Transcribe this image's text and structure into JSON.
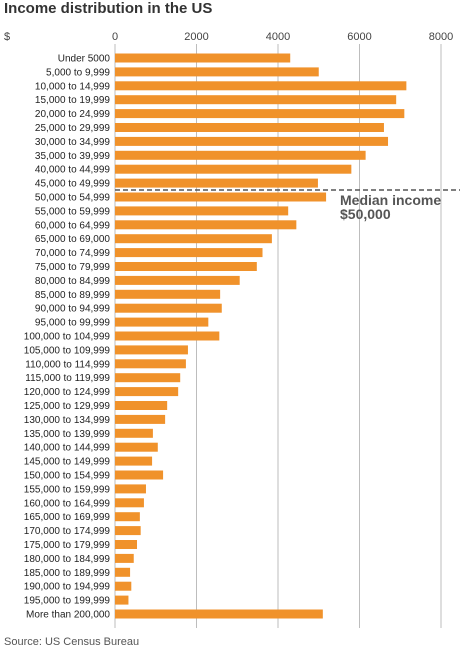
{
  "chart_data": {
    "type": "bar",
    "orientation": "horizontal",
    "title": "Income distribution in the US",
    "unit_label": "$",
    "xlim": [
      0,
      8000
    ],
    "xticks": [
      "0",
      "2000",
      "4000",
      "6000",
      "8000"
    ],
    "grid": true,
    "categories": [
      "Under 5000",
      "5,000 to 9,999",
      "10,000 to 14,999",
      "15,000 to 19,999",
      "20,000 to 24,999",
      "25,000 to 29,999",
      "30,000 to 34,999",
      "35,000 to 39,999",
      "40,000 to 44,999",
      "45,000 to 49,999",
      "50,000 to 54,999",
      "55,000 to 59,999",
      "60,000 to 64,999",
      "65,000 to 69,000",
      "70,000 to 74,999",
      "75,000 to 79,999",
      "80,000 to 84,999",
      "85,000 to 89,999",
      "90,000 to 94,999",
      "95,000 to 99,999",
      "100,000 to 104,999",
      "105,000 to 109,999",
      "110,000 to 114,999",
      "115,000 to 119,999",
      "120,000 to 124,999",
      "125,000 to 129,999",
      "130,000 to 134,999",
      "135,000 to 139,999",
      "140,000 to 144,999",
      "145,000 to 149,999",
      "150,000 to 154,999",
      "155,000 to 159,999",
      "160,000 to 164,999",
      "165,000 to 169,999",
      "170,000 to 174,999",
      "175,000 to 179,999",
      "180,000 to 184,999",
      "185,000 to 189,999",
      "190,000 to 194,999",
      "195,000 to 199,999",
      "More than 200,000"
    ],
    "values": [
      4300,
      5000,
      7150,
      6900,
      7100,
      6600,
      6700,
      6150,
      5800,
      4980,
      5180,
      4250,
      4450,
      3850,
      3620,
      3480,
      3060,
      2580,
      2620,
      2290,
      2560,
      1790,
      1740,
      1600,
      1550,
      1280,
      1230,
      930,
      1050,
      910,
      1180,
      760,
      710,
      610,
      630,
      540,
      460,
      370,
      400,
      330,
      5100
    ],
    "bar_color": "#f0922b",
    "median": {
      "after_category_index": 9,
      "label_line1": "Median income",
      "label_line2": "$50,000"
    }
  },
  "source": "Source: US Census Bureau"
}
